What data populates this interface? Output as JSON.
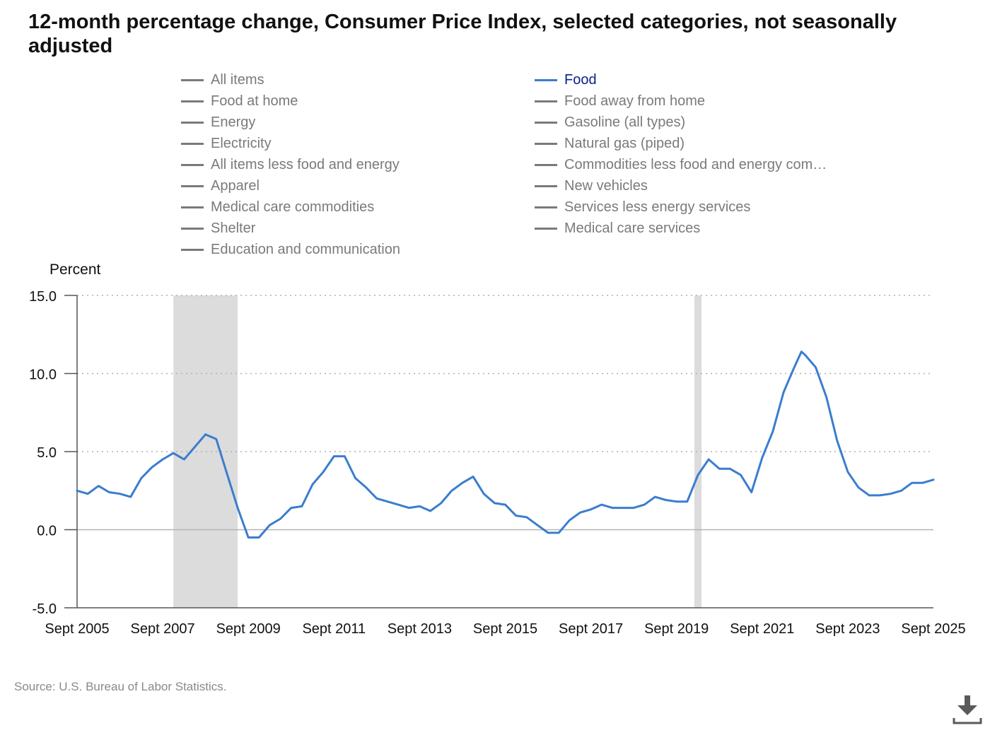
{
  "title": "12-month percentage change, Consumer Price Index, selected categories, not seasonally adjusted",
  "legend": {
    "items": [
      {
        "label": "All items",
        "active": false
      },
      {
        "label": "Food",
        "active": true
      },
      {
        "label": "Food at home",
        "active": false
      },
      {
        "label": "Food away from home",
        "active": false
      },
      {
        "label": "Energy",
        "active": false
      },
      {
        "label": "Gasoline (all types)",
        "active": false
      },
      {
        "label": "Electricity",
        "active": false
      },
      {
        "label": "Natural gas (piped)",
        "active": false
      },
      {
        "label": "All items less food and energy",
        "active": false
      },
      {
        "label": "Commodities less food and energy com…",
        "active": false
      },
      {
        "label": "Apparel",
        "active": false
      },
      {
        "label": "New vehicles",
        "active": false
      },
      {
        "label": "Medical care commodities",
        "active": false
      },
      {
        "label": "Services less energy services",
        "active": false
      },
      {
        "label": "Shelter",
        "active": false
      },
      {
        "label": "Medical care services",
        "active": false
      },
      {
        "label": "Education and communication",
        "active": false
      }
    ]
  },
  "source": "Source: U.S. Bureau of Labor Statistics.",
  "colors": {
    "active_series": "#3a7dcf",
    "inactive_legend": "#7a7a7a",
    "recession_shading": "#dcdcdc",
    "grid": "#b0b0b0"
  },
  "download_icon": "download-icon",
  "chart_data": {
    "type": "line",
    "ylabel": "Percent",
    "ylim": [
      -5,
      15
    ],
    "yticks": [
      "15.0",
      "10.0",
      "5.0",
      "0.0",
      "-5.0"
    ],
    "ytick_values": [
      15,
      10,
      5,
      0,
      -5
    ],
    "xlim": [
      "2005-09",
      "2025-09"
    ],
    "xticks": [
      "Sept 2005",
      "Sept 2007",
      "Sept 2009",
      "Sept 2011",
      "Sept 2013",
      "Sept 2015",
      "Sept 2017",
      "Sept 2019",
      "Sept 2021",
      "Sept 2023",
      "Sept 2025"
    ],
    "xtick_values": [
      "2005-09",
      "2007-09",
      "2009-09",
      "2011-09",
      "2013-09",
      "2015-09",
      "2017-09",
      "2019-09",
      "2021-09",
      "2023-09",
      "2025-09"
    ],
    "grid": "horizontal dotted",
    "recessions": [
      {
        "start": "2007-12",
        "end": "2009-06"
      },
      {
        "start": "2020-02",
        "end": "2020-04"
      }
    ],
    "series": [
      {
        "name": "Food",
        "x": [
          "2005-09",
          "2005-12",
          "2006-03",
          "2006-06",
          "2006-09",
          "2006-12",
          "2007-03",
          "2007-06",
          "2007-09",
          "2007-12",
          "2008-03",
          "2008-06",
          "2008-09",
          "2008-12",
          "2009-03",
          "2009-06",
          "2009-09",
          "2009-12",
          "2010-03",
          "2010-06",
          "2010-09",
          "2010-12",
          "2011-03",
          "2011-06",
          "2011-09",
          "2011-12",
          "2012-03",
          "2012-06",
          "2012-09",
          "2012-12",
          "2013-03",
          "2013-06",
          "2013-09",
          "2013-12",
          "2014-03",
          "2014-06",
          "2014-09",
          "2014-12",
          "2015-03",
          "2015-06",
          "2015-09",
          "2015-12",
          "2016-03",
          "2016-06",
          "2016-09",
          "2016-12",
          "2017-03",
          "2017-06",
          "2017-09",
          "2017-12",
          "2018-03",
          "2018-06",
          "2018-09",
          "2018-12",
          "2019-03",
          "2019-06",
          "2019-09",
          "2019-12",
          "2020-03",
          "2020-06",
          "2020-09",
          "2020-12",
          "2021-03",
          "2021-06",
          "2021-09",
          "2021-12",
          "2022-03",
          "2022-06",
          "2022-08",
          "2022-09",
          "2022-12",
          "2023-03",
          "2023-06",
          "2023-09",
          "2023-12",
          "2024-03",
          "2024-06",
          "2024-09",
          "2024-12",
          "2025-03",
          "2025-06",
          "2025-09"
        ],
        "y": [
          2.5,
          2.3,
          2.8,
          2.4,
          2.3,
          2.1,
          3.3,
          4.0,
          4.5,
          4.9,
          4.5,
          5.3,
          6.1,
          5.8,
          3.6,
          1.4,
          -0.5,
          -0.5,
          0.3,
          0.7,
          1.4,
          1.5,
          2.9,
          3.7,
          4.7,
          4.7,
          3.3,
          2.7,
          2.0,
          1.8,
          1.6,
          1.4,
          1.5,
          1.2,
          1.7,
          2.5,
          3.0,
          3.4,
          2.3,
          1.7,
          1.6,
          0.9,
          0.8,
          0.3,
          -0.2,
          -0.2,
          0.6,
          1.1,
          1.3,
          1.6,
          1.4,
          1.4,
          1.4,
          1.6,
          2.1,
          1.9,
          1.8,
          1.8,
          3.5,
          4.5,
          3.9,
          3.9,
          3.5,
          2.4,
          4.6,
          6.3,
          8.8,
          10.4,
          11.4,
          11.2,
          10.4,
          8.5,
          5.7,
          3.7,
          2.7,
          2.2,
          2.2,
          2.3,
          2.5,
          3.0,
          3.0,
          3.2
        ]
      }
    ]
  }
}
